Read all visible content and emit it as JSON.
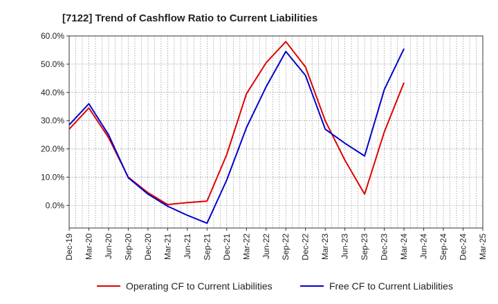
{
  "chart_data": {
    "type": "line",
    "title": "[7122]  Trend of Cashflow Ratio to Current Liabilities",
    "xlabel": "",
    "ylabel": "",
    "ylim": [
      -8,
      60
    ],
    "yticks": [
      0,
      10,
      20,
      30,
      40,
      50,
      60
    ],
    "ytick_labels": [
      "0.0%",
      "10.0%",
      "20.0%",
      "30.0%",
      "40.0%",
      "50.0%",
      "60.0%"
    ],
    "x": [
      "Dec-19",
      "Mar-20",
      "Jun-20",
      "Sep-20",
      "Dec-20",
      "Mar-21",
      "Jun-21",
      "Sep-21",
      "Dec-21",
      "Mar-22",
      "Jun-22",
      "Sep-22",
      "Dec-22",
      "Mar-23",
      "Jun-23",
      "Sep-23",
      "Dec-23",
      "Mar-24",
      "Jun-24",
      "Sep-24",
      "Dec-24",
      "Mar-25"
    ],
    "grid": true,
    "legend_position": "bottom",
    "series": [
      {
        "name": "Operating CF to Current Liabilities",
        "color": "#dd0000",
        "values": [
          27.0,
          34.5,
          24.0,
          10.0,
          4.5,
          0.3,
          1.0,
          1.5,
          18.0,
          39.5,
          50.5,
          58.0,
          49.0,
          30.0,
          16.0,
          4.0,
          26.0,
          43.5,
          null,
          null,
          null,
          null
        ]
      },
      {
        "name": "Free CF to Current Liabilities",
        "color": "#0000cc",
        "values": [
          28.5,
          36.0,
          25.0,
          9.8,
          4.0,
          -0.3,
          -3.5,
          -6.3,
          9.0,
          27.5,
          42.0,
          54.5,
          46.0,
          27.0,
          22.0,
          17.5,
          41.0,
          55.5,
          null,
          null,
          null,
          null
        ]
      }
    ]
  }
}
